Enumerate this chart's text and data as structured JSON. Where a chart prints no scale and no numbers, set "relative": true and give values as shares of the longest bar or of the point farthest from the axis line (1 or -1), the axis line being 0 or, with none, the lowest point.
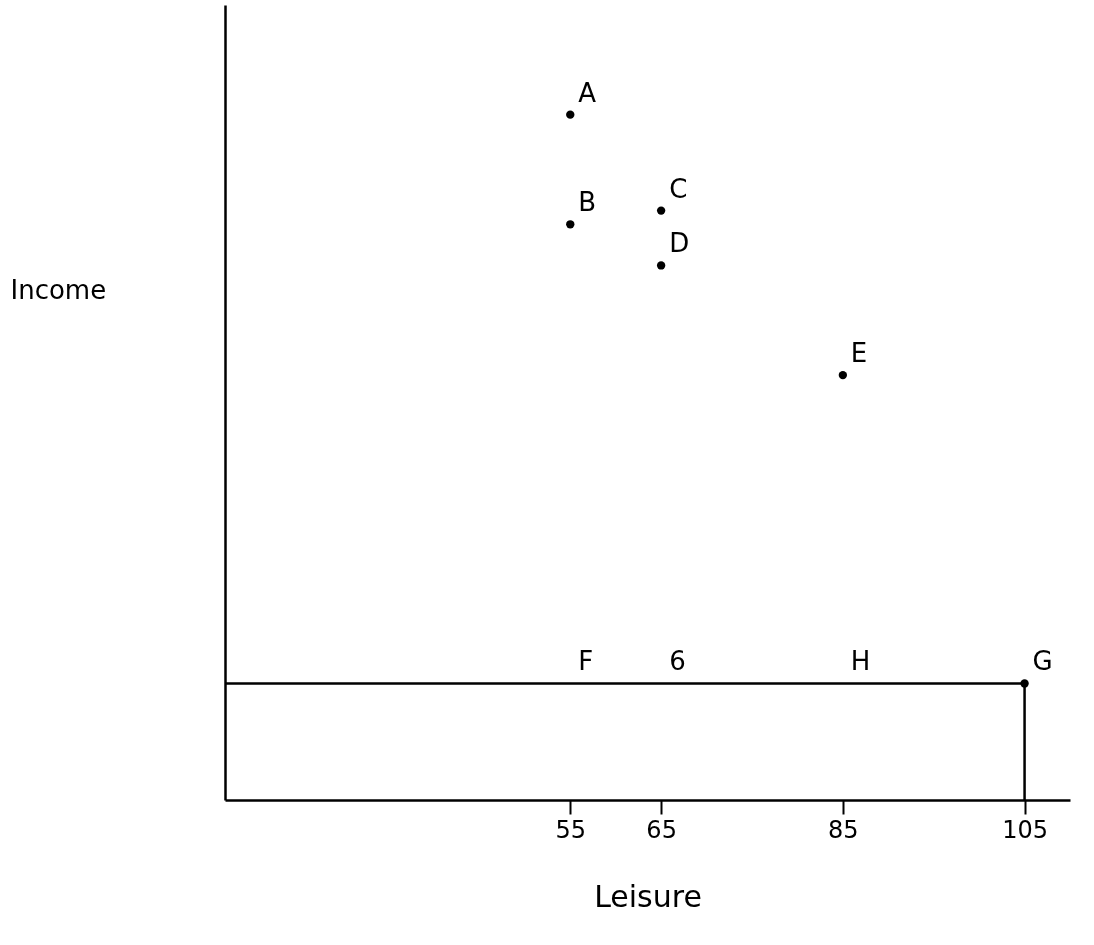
{
  "chart_data": {
    "type": "scatter",
    "relative": true,
    "xlabel": "Leisure",
    "ylabel": "Income",
    "xlim": [
      17,
      110
    ],
    "xticks": [
      55,
      65,
      85,
      105
    ],
    "grid": false,
    "tick_labels": "x",
    "series": [
      {
        "type": "line",
        "color": "#000000",
        "x": [
          17,
          105,
          105
        ],
        "values": [
          0.17,
          0.17,
          0
        ],
        "marker": "none"
      },
      {
        "color": "#000000",
        "marker": "circle",
        "x": [
          55,
          55,
          65,
          65,
          85,
          105
        ],
        "values": [
          1,
          0.84,
          0.86,
          0.78,
          0.62,
          0.17
        ]
      }
    ],
    "annotations": [
      {
        "text": "A",
        "x": 55,
        "y": 1
      },
      {
        "text": "B",
        "x": 55,
        "y": 0.84
      },
      {
        "text": "C",
        "x": 65,
        "y": 0.86
      },
      {
        "text": "D",
        "x": 65,
        "y": 0.78
      },
      {
        "text": "E",
        "x": 85,
        "y": 0.62
      },
      {
        "text": "F",
        "x": 55,
        "y": 0.17
      },
      {
        "text": "6",
        "x": 65,
        "y": 0.17
      },
      {
        "text": "H",
        "x": 85,
        "y": 0.17
      },
      {
        "text": "G",
        "x": 105,
        "y": 0.17
      }
    ]
  }
}
